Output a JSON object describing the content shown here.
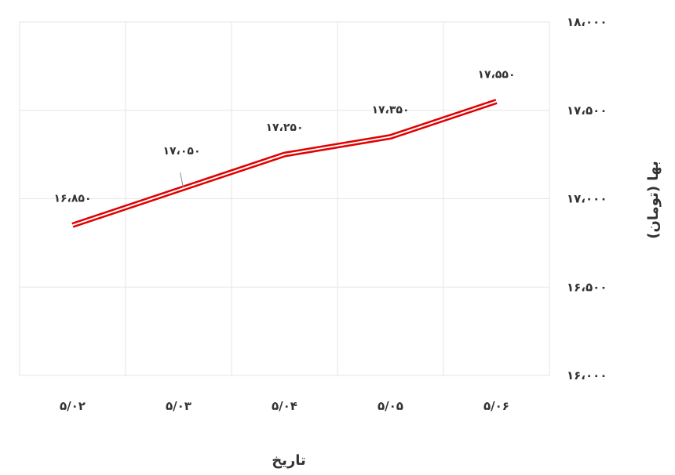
{
  "chart_data": {
    "type": "line",
    "xlabel": "تاریخ",
    "ylabel": "بها (تومان)",
    "categories": [
      "۵/۰۲",
      "۵/۰۳",
      "۵/۰۴",
      "۵/۰۵",
      "۵/۰۶"
    ],
    "series": [
      {
        "values": [
          16850,
          17050,
          17250,
          17350,
          17550
        ],
        "data_labels": [
          "۱۶،۸۵۰",
          "۱۷،۰۵۰",
          "۱۷،۲۵۰",
          "۱۷،۳۵۰",
          "۱۷،۵۵۰"
        ],
        "color": "#e00000"
      }
    ],
    "ylim": [
      16000,
      18000
    ],
    "yticks": [
      16000,
      16500,
      17000,
      17500,
      18000
    ],
    "ytick_labels": [
      "۱۶،۰۰۰",
      "۱۶،۵۰۰",
      "۱۷،۰۰۰",
      "۱۷،۵۰۰",
      "۱۸،۰۰۰"
    ],
    "y_axis_side": "right",
    "grid": true
  }
}
